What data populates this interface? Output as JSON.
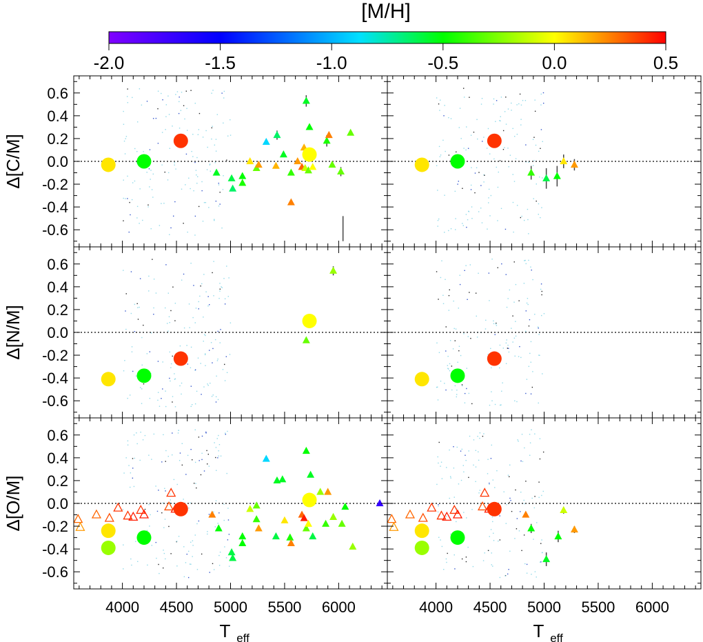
{
  "chart_data": {
    "type": "scatter",
    "title": "[M/H]",
    "colorbar": {
      "label": "[M/H]",
      "range": [
        -2.0,
        0.5
      ],
      "tick_labels": [
        "-2.0",
        "-1.5",
        "-1.0",
        "-0.5",
        "0.0",
        "0.5"
      ],
      "tick_values": [
        -2.0,
        -1.5,
        -1.0,
        -0.5,
        0.0,
        0.5
      ],
      "colormap": [
        "#8000ff",
        "#0000ff",
        "#00e0ff",
        "#00ff00",
        "#ffff00",
        "#ff8000",
        "#ff0000"
      ]
    },
    "xlabel": "T",
    "xlabel_sub": "eff",
    "xlim": [
      3550,
      6450
    ],
    "ylim": [
      -0.75,
      0.75
    ],
    "x_tick_labels": [
      "4000",
      "4500",
      "5000",
      "5500",
      "6000"
    ],
    "x_tick_values": [
      4000,
      4500,
      5000,
      5500,
      6000
    ],
    "y_tick_labels": [
      "-0.6",
      "-0.4",
      "-0.2",
      "0.0",
      "0.2",
      "0.4",
      "0.6"
    ],
    "y_tick_values": [
      -0.6,
      -0.4,
      -0.2,
      0.0,
      0.2,
      0.4,
      0.6
    ],
    "reference_line": 0.0,
    "rows": [
      {
        "ylabel": "Δ[C/M]"
      },
      {
        "ylabel": "Δ[N/M]"
      },
      {
        "ylabel": "Δ[O/M]"
      }
    ],
    "panels": [
      {
        "row": 0,
        "col": 0,
        "circles": [
          [
            3870,
            -0.03,
            0.05
          ],
          [
            4200,
            0.0,
            -0.5
          ],
          [
            4540,
            0.18,
            0.4
          ],
          [
            5730,
            0.06,
            0.0
          ]
        ],
        "triangles": [
          [
            4870,
            -0.1,
            -0.55,
            0
          ],
          [
            5010,
            -0.15,
            -0.6,
            0
          ],
          [
            5020,
            -0.24,
            -0.65,
            0
          ],
          [
            5110,
            -0.13,
            -0.5,
            0
          ],
          [
            5110,
            -0.19,
            -0.45,
            0
          ],
          [
            5180,
            0.0,
            0.05,
            0
          ],
          [
            5240,
            -0.06,
            -0.3,
            0
          ],
          [
            5260,
            -0.03,
            0.2,
            0
          ],
          [
            5330,
            0.17,
            -0.9,
            0
          ],
          [
            5420,
            -0.04,
            0.15,
            0
          ],
          [
            5430,
            0.23,
            -0.65,
            0.04
          ],
          [
            5490,
            0.06,
            -0.55,
            0
          ],
          [
            5560,
            -0.1,
            -0.4,
            0
          ],
          [
            5560,
            -0.36,
            0.25,
            0
          ],
          [
            5620,
            0.0,
            0.2,
            0
          ],
          [
            5660,
            -0.05,
            0.3,
            0
          ],
          [
            5680,
            0.12,
            0.15,
            0
          ],
          [
            5690,
            -0.06,
            -0.1,
            0
          ],
          [
            5700,
            0.53,
            -0.55,
            0.05
          ],
          [
            5720,
            -0.08,
            -0.3,
            0
          ],
          [
            5730,
            0.3,
            -0.5,
            0
          ],
          [
            5760,
            -0.05,
            0.0,
            0
          ],
          [
            5890,
            0.18,
            -0.45,
            0.05
          ],
          [
            5910,
            0.23,
            0.25,
            0
          ],
          [
            5940,
            -0.03,
            -0.3,
            0.02
          ],
          [
            6020,
            -0.09,
            -0.3,
            0.04
          ],
          [
            6110,
            0.25,
            -0.3,
            0.02
          ]
        ],
        "open_triangles": [],
        "errorbars": [
          [
            6040,
            -0.7,
            -0.48
          ]
        ]
      },
      {
        "row": 0,
        "col": 1,
        "circles": [
          [
            3870,
            -0.03,
            0.05
          ],
          [
            4200,
            0.0,
            -0.5
          ],
          [
            4540,
            0.18,
            0.4
          ]
        ],
        "triangles": [
          [
            4880,
            -0.1,
            -0.4,
            0.06
          ],
          [
            5020,
            -0.15,
            -0.6,
            0.09
          ],
          [
            5120,
            -0.13,
            -0.5,
            0.09
          ],
          [
            5180,
            0.0,
            0.05,
            0.06
          ],
          [
            5280,
            -0.03,
            0.2,
            0.05
          ]
        ],
        "open_triangles": [],
        "errorbars": []
      },
      {
        "row": 1,
        "col": 0,
        "circles": [
          [
            3870,
            -0.41,
            0.05
          ],
          [
            4200,
            -0.38,
            -0.5
          ],
          [
            4540,
            -0.23,
            0.4
          ],
          [
            5730,
            0.1,
            0.0
          ]
        ],
        "triangles": [
          [
            5700,
            -0.07,
            -0.3,
            0
          ],
          [
            5950,
            0.54,
            -0.2,
            0.04
          ]
        ],
        "open_triangles": [],
        "errorbars": []
      },
      {
        "row": 1,
        "col": 1,
        "circles": [
          [
            3870,
            -0.41,
            0.05
          ],
          [
            4200,
            -0.38,
            -0.5
          ],
          [
            4540,
            -0.23,
            0.4
          ]
        ],
        "triangles": [],
        "open_triangles": [],
        "errorbars": []
      },
      {
        "row": 2,
        "col": 0,
        "circles": [
          [
            3870,
            -0.24,
            0.05
          ],
          [
            3870,
            -0.39,
            -0.2
          ],
          [
            4200,
            -0.3,
            -0.5
          ],
          [
            4540,
            -0.05,
            0.4
          ],
          [
            5730,
            0.03,
            0.0
          ]
        ],
        "triangles": [
          [
            4830,
            -0.1,
            0.25,
            0
          ],
          [
            4890,
            -0.22,
            -0.5,
            0
          ],
          [
            5010,
            -0.43,
            -0.6,
            0
          ],
          [
            5020,
            -0.48,
            -0.6,
            0
          ],
          [
            5110,
            -0.29,
            -0.5,
            0
          ],
          [
            5110,
            -0.35,
            -0.5,
            0
          ],
          [
            5180,
            -0.05,
            -0.1,
            0
          ],
          [
            5240,
            -0.02,
            -0.3,
            0
          ],
          [
            5240,
            -0.14,
            -0.4,
            0
          ],
          [
            5260,
            -0.22,
            0.2,
            0
          ],
          [
            5330,
            0.39,
            -0.9,
            0
          ],
          [
            5420,
            -0.29,
            -0.6,
            0
          ],
          [
            5430,
            0.2,
            -0.55,
            0
          ],
          [
            5480,
            0.21,
            -0.55,
            0
          ],
          [
            5500,
            -0.15,
            0.05,
            0
          ],
          [
            5550,
            -0.3,
            -0.45,
            0
          ],
          [
            5560,
            -0.35,
            0.25,
            0
          ],
          [
            5660,
            -0.1,
            0.3,
            0
          ],
          [
            5680,
            -0.13,
            0.45,
            0
          ],
          [
            5700,
            0.46,
            -0.5,
            0
          ],
          [
            5700,
            -0.22,
            -0.3,
            0
          ],
          [
            5720,
            -0.18,
            0.0,
            0
          ],
          [
            5740,
            0.25,
            -0.55,
            0
          ],
          [
            5760,
            -0.29,
            -0.6,
            0
          ],
          [
            5830,
            0.1,
            -0.2,
            0
          ],
          [
            5880,
            -0.18,
            -0.4,
            0
          ],
          [
            5900,
            0.1,
            0.2,
            0
          ],
          [
            5950,
            -0.12,
            -0.2,
            0
          ],
          [
            6030,
            -0.18,
            -0.3,
            0
          ],
          [
            6060,
            -0.03,
            -0.5,
            0
          ],
          [
            6130,
            -0.38,
            -0.2,
            0
          ],
          [
            6380,
            0.0,
            -1.7,
            0
          ]
        ],
        "open_triangles": [
          [
            3590,
            -0.14,
            0.3
          ],
          [
            3610,
            -0.21,
            0.2
          ],
          [
            3760,
            -0.1,
            0.3
          ],
          [
            3880,
            -0.13,
            0.35
          ],
          [
            3960,
            -0.04,
            0.4
          ],
          [
            4050,
            -0.11,
            0.4
          ],
          [
            4100,
            -0.12,
            0.45
          ],
          [
            4170,
            -0.06,
            0.4
          ],
          [
            4200,
            -0.1,
            0.45
          ],
          [
            4430,
            -0.03,
            0.35
          ],
          [
            4450,
            0.09,
            0.4
          ],
          [
            4490,
            -0.05,
            0.45
          ]
        ],
        "errorbars": []
      },
      {
        "row": 2,
        "col": 1,
        "circles": [
          [
            3870,
            -0.24,
            0.05
          ],
          [
            3870,
            -0.39,
            -0.2
          ],
          [
            4200,
            -0.3,
            -0.5
          ],
          [
            4540,
            -0.05,
            0.4
          ]
        ],
        "triangles": [
          [
            4830,
            -0.1,
            0.25,
            0
          ],
          [
            4880,
            -0.22,
            -0.5,
            0.04
          ],
          [
            5020,
            -0.49,
            -0.55,
            0.06
          ],
          [
            5130,
            -0.29,
            -0.5,
            0.05
          ],
          [
            5180,
            -0.06,
            -0.1,
            0.03
          ],
          [
            5280,
            -0.23,
            0.2,
            0.03
          ]
        ],
        "open_triangles": [
          [
            3590,
            -0.14,
            0.3
          ],
          [
            3610,
            -0.21,
            0.2
          ],
          [
            3760,
            -0.1,
            0.3
          ],
          [
            3880,
            -0.13,
            0.35
          ],
          [
            3960,
            -0.04,
            0.4
          ],
          [
            4050,
            -0.11,
            0.4
          ],
          [
            4100,
            -0.12,
            0.45
          ],
          [
            4170,
            -0.06,
            0.4
          ],
          [
            4200,
            -0.1,
            0.45
          ],
          [
            4430,
            -0.03,
            0.35
          ],
          [
            4450,
            0.09,
            0.4
          ],
          [
            4490,
            -0.05,
            0.45
          ]
        ],
        "errorbars": []
      }
    ]
  }
}
